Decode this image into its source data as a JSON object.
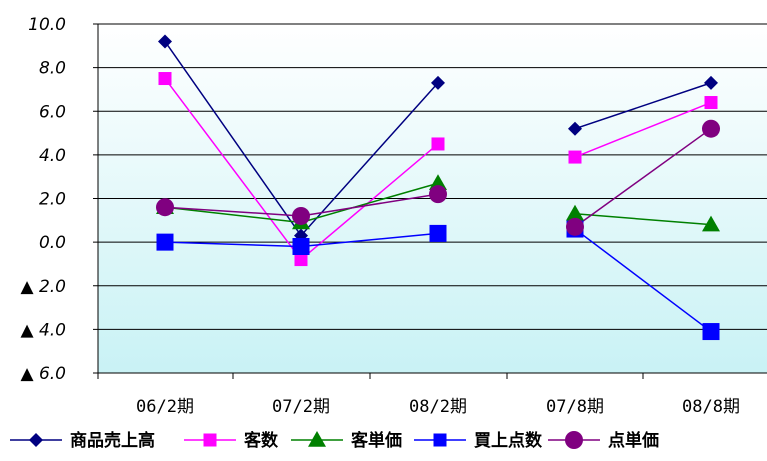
{
  "chart_data": {
    "type": "line",
    "categories": [
      "06/2期",
      "07/2期",
      "08/2期",
      "07/8期",
      "08/8期"
    ],
    "segments": [
      [
        0,
        1,
        2
      ],
      [
        3,
        4
      ]
    ],
    "ylim": [
      -6.0,
      10.0
    ],
    "yticks": [
      10.0,
      8.0,
      6.0,
      4.0,
      2.0,
      0.0,
      -2.0,
      -4.0,
      -6.0
    ],
    "ytick_labels": [
      "10.0",
      "8.0",
      "6.0",
      "4.0",
      "2.0",
      "0.0",
      "▲ 2.0",
      "▲ 4.0",
      "▲ 6.0"
    ],
    "grid": true,
    "legend_position": "bottom",
    "plot_background": [
      "#ffffff",
      "#c9f2f5"
    ],
    "series": [
      {
        "name": "商品売上高",
        "color": "#000080",
        "marker": "diamond",
        "values": [
          9.2,
          0.3,
          7.3,
          5.2,
          7.3
        ]
      },
      {
        "name": "客数",
        "color": "#ff00ff",
        "marker": "square",
        "values": [
          7.5,
          -0.8,
          4.5,
          3.9,
          6.4
        ]
      },
      {
        "name": "客単価",
        "color": "#008000",
        "marker": "triangle",
        "values": [
          1.6,
          0.9,
          2.7,
          1.3,
          0.8
        ]
      },
      {
        "name": "買上点数",
        "color": "#0000ff",
        "marker": "square-large",
        "values": [
          0.0,
          -0.2,
          0.4,
          0.6,
          -4.1
        ]
      },
      {
        "name": "点単価",
        "color": "#800080",
        "marker": "circle",
        "values": [
          1.6,
          1.2,
          2.2,
          0.7,
          5.2
        ]
      }
    ]
  }
}
